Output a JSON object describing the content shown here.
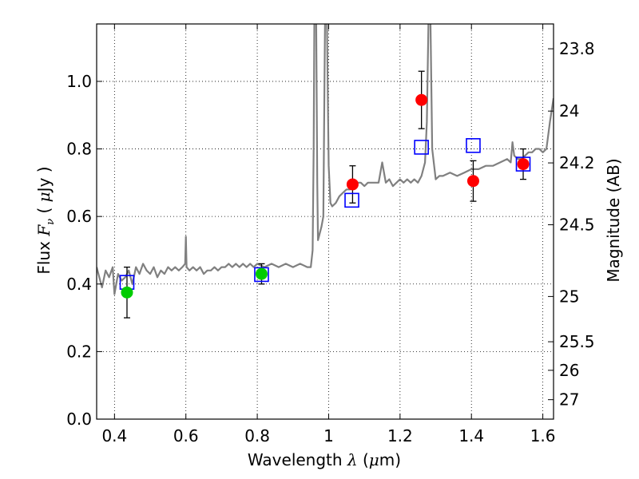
{
  "chart_data": {
    "type": "scatter",
    "xlabel": {
      "pre": "Wavelength  ",
      "sym": "λ",
      "mid": " (",
      "mu": "μ",
      "post": "m)"
    },
    "ylabel": {
      "pre": "Flux  ",
      "sym": "F",
      "sub": "ν",
      "mid": "  ( ",
      "mu": "μ",
      "post": "Jy )"
    },
    "y2label": "Magnitude (AB)",
    "xlim": [
      0.35,
      1.63
    ],
    "ylim": [
      0.0,
      1.17
    ],
    "grid": true,
    "colors": {
      "spectrum": "#808080",
      "model": "#0000ff",
      "obs_red": "#ff0000",
      "obs_green": "#00cc00",
      "error": "#000000"
    },
    "x_ticks": [
      {
        "v": 0.4,
        "label": "0.4"
      },
      {
        "v": 0.6,
        "label": "0.6"
      },
      {
        "v": 0.8,
        "label": "0.8"
      },
      {
        "v": 1.0,
        "label": "1"
      },
      {
        "v": 1.2,
        "label": "1.2"
      },
      {
        "v": 1.4,
        "label": "1.4"
      },
      {
        "v": 1.6,
        "label": "1.6"
      }
    ],
    "y_ticks": [
      {
        "v": 0.0,
        "label": "0.0"
      },
      {
        "v": 0.2,
        "label": "0.2"
      },
      {
        "v": 0.4,
        "label": "0.4"
      },
      {
        "v": 0.6,
        "label": "0.6"
      },
      {
        "v": 0.8,
        "label": "0.8"
      },
      {
        "v": 1.0,
        "label": "1.0"
      }
    ],
    "mag_ticks": [
      {
        "mag": 23.8,
        "label": "23.8"
      },
      {
        "mag": 24.0,
        "label": "24"
      },
      {
        "mag": 24.2,
        "label": "24.2"
      },
      {
        "mag": 24.5,
        "label": "24.5"
      },
      {
        "mag": 25.0,
        "label": "25"
      },
      {
        "mag": 25.5,
        "label": "25.5"
      },
      {
        "mag": 26.0,
        "label": "26"
      },
      {
        "mag": 27.0,
        "label": "27"
      }
    ],
    "spectrum": [
      [
        0.35,
        0.45
      ],
      [
        0.365,
        0.39
      ],
      [
        0.375,
        0.44
      ],
      [
        0.385,
        0.42
      ],
      [
        0.395,
        0.45
      ],
      [
        0.4,
        0.37
      ],
      [
        0.41,
        0.43
      ],
      [
        0.42,
        0.41
      ],
      [
        0.43,
        0.42
      ],
      [
        0.44,
        0.44
      ],
      [
        0.45,
        0.4
      ],
      [
        0.46,
        0.45
      ],
      [
        0.47,
        0.43
      ],
      [
        0.48,
        0.46
      ],
      [
        0.49,
        0.44
      ],
      [
        0.5,
        0.43
      ],
      [
        0.51,
        0.45
      ],
      [
        0.52,
        0.42
      ],
      [
        0.53,
        0.44
      ],
      [
        0.54,
        0.43
      ],
      [
        0.55,
        0.45
      ],
      [
        0.56,
        0.44
      ],
      [
        0.57,
        0.45
      ],
      [
        0.58,
        0.44
      ],
      [
        0.59,
        0.45
      ],
      [
        0.598,
        0.46
      ],
      [
        0.6,
        0.54
      ],
      [
        0.602,
        0.45
      ],
      [
        0.61,
        0.44
      ],
      [
        0.62,
        0.45
      ],
      [
        0.63,
        0.44
      ],
      [
        0.64,
        0.45
      ],
      [
        0.65,
        0.43
      ],
      [
        0.66,
        0.44
      ],
      [
        0.67,
        0.44
      ],
      [
        0.68,
        0.45
      ],
      [
        0.69,
        0.44
      ],
      [
        0.7,
        0.45
      ],
      [
        0.71,
        0.45
      ],
      [
        0.72,
        0.46
      ],
      [
        0.73,
        0.45
      ],
      [
        0.74,
        0.46
      ],
      [
        0.75,
        0.45
      ],
      [
        0.76,
        0.46
      ],
      [
        0.77,
        0.45
      ],
      [
        0.78,
        0.46
      ],
      [
        0.79,
        0.45
      ],
      [
        0.8,
        0.46
      ],
      [
        0.82,
        0.45
      ],
      [
        0.84,
        0.46
      ],
      [
        0.86,
        0.45
      ],
      [
        0.88,
        0.46
      ],
      [
        0.9,
        0.45
      ],
      [
        0.92,
        0.46
      ],
      [
        0.94,
        0.45
      ],
      [
        0.95,
        0.45
      ],
      [
        0.955,
        0.5
      ],
      [
        0.958,
        0.8
      ],
      [
        0.96,
        1.2
      ],
      [
        0.965,
        1.2
      ],
      [
        0.968,
        0.7
      ],
      [
        0.97,
        0.53
      ],
      [
        0.975,
        0.55
      ],
      [
        0.98,
        0.57
      ],
      [
        0.985,
        0.6
      ],
      [
        0.99,
        1.2
      ],
      [
        0.995,
        1.2
      ],
      [
        1.0,
        0.75
      ],
      [
        1.005,
        0.64
      ],
      [
        1.01,
        0.63
      ],
      [
        1.02,
        0.64
      ],
      [
        1.03,
        0.66
      ],
      [
        1.04,
        0.67
      ],
      [
        1.05,
        0.68
      ],
      [
        1.06,
        0.68
      ],
      [
        1.07,
        0.69
      ],
      [
        1.08,
        0.7
      ],
      [
        1.09,
        0.7
      ],
      [
        1.1,
        0.69
      ],
      [
        1.11,
        0.7
      ],
      [
        1.12,
        0.7
      ],
      [
        1.13,
        0.7
      ],
      [
        1.14,
        0.7
      ],
      [
        1.15,
        0.76
      ],
      [
        1.16,
        0.7
      ],
      [
        1.17,
        0.71
      ],
      [
        1.18,
        0.69
      ],
      [
        1.19,
        0.7
      ],
      [
        1.2,
        0.71
      ],
      [
        1.21,
        0.7
      ],
      [
        1.22,
        0.71
      ],
      [
        1.23,
        0.7
      ],
      [
        1.24,
        0.71
      ],
      [
        1.25,
        0.7
      ],
      [
        1.26,
        0.72
      ],
      [
        1.27,
        0.76
      ],
      [
        1.275,
        0.88
      ],
      [
        1.28,
        1.2
      ],
      [
        1.285,
        1.2
      ],
      [
        1.29,
        0.8
      ],
      [
        1.3,
        0.71
      ],
      [
        1.31,
        0.72
      ],
      [
        1.32,
        0.72
      ],
      [
        1.34,
        0.73
      ],
      [
        1.36,
        0.72
      ],
      [
        1.38,
        0.73
      ],
      [
        1.4,
        0.74
      ],
      [
        1.42,
        0.74
      ],
      [
        1.44,
        0.75
      ],
      [
        1.46,
        0.75
      ],
      [
        1.48,
        0.76
      ],
      [
        1.5,
        0.77
      ],
      [
        1.51,
        0.76
      ],
      [
        1.515,
        0.82
      ],
      [
        1.52,
        0.78
      ],
      [
        1.53,
        0.77
      ],
      [
        1.54,
        0.77
      ],
      [
        1.55,
        0.78
      ],
      [
        1.56,
        0.79
      ],
      [
        1.57,
        0.79
      ],
      [
        1.58,
        0.8
      ],
      [
        1.59,
        0.8
      ],
      [
        1.6,
        0.79
      ],
      [
        1.61,
        0.8
      ],
      [
        1.62,
        0.88
      ],
      [
        1.63,
        0.95
      ]
    ],
    "model_points": [
      {
        "x": 0.435,
        "y": 0.405
      },
      {
        "x": 0.812,
        "y": 0.428
      },
      {
        "x": 1.065,
        "y": 0.648
      },
      {
        "x": 1.26,
        "y": 0.805
      },
      {
        "x": 1.405,
        "y": 0.81
      },
      {
        "x": 1.545,
        "y": 0.755
      }
    ],
    "observed_points": [
      {
        "x": 0.435,
        "y": 0.375,
        "err": 0.075,
        "color": "green"
      },
      {
        "x": 0.812,
        "y": 0.43,
        "err": 0.03,
        "color": "green"
      },
      {
        "x": 1.067,
        "y": 0.695,
        "err": 0.055,
        "color": "red"
      },
      {
        "x": 1.26,
        "y": 0.945,
        "err": 0.085,
        "color": "red"
      },
      {
        "x": 1.405,
        "y": 0.705,
        "err": 0.06,
        "color": "red"
      },
      {
        "x": 1.545,
        "y": 0.755,
        "err": 0.045,
        "color": "red"
      }
    ]
  }
}
